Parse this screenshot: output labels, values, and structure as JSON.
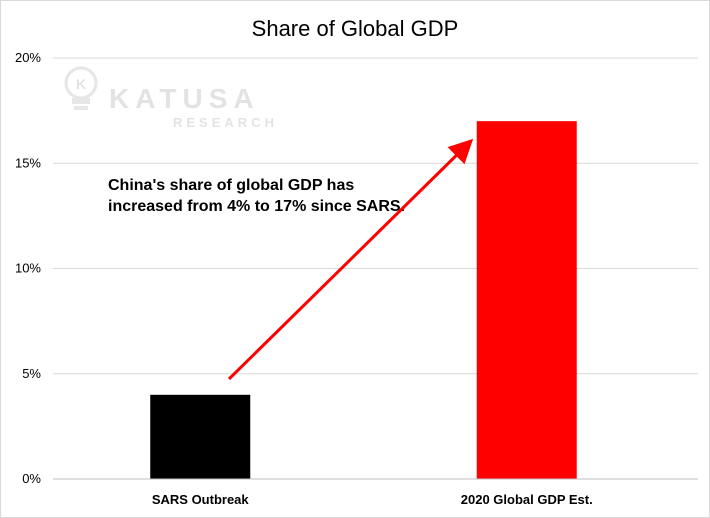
{
  "watermark": {
    "name": "KATUSA",
    "sub": "RESEARCH",
    "mark": "K"
  },
  "chart_data": {
    "type": "bar",
    "title": "Share of Global GDP",
    "categories": [
      "SARS Outbreak",
      "2020 Global GDP Est."
    ],
    "values": [
      4,
      17
    ],
    "bar_colors": [
      "#000000",
      "#ff0000"
    ],
    "ylim": [
      0,
      20
    ],
    "yticks": [
      0,
      5,
      10,
      15,
      20
    ],
    "ytick_labels": [
      "0%",
      "5%",
      "10%",
      "15%",
      "20%"
    ],
    "grid": true,
    "annotation": {
      "lines": [
        "China's share of global GDP has",
        "increased from 4% to 17% since SARS."
      ],
      "arrow_color": "#ff0000"
    }
  }
}
